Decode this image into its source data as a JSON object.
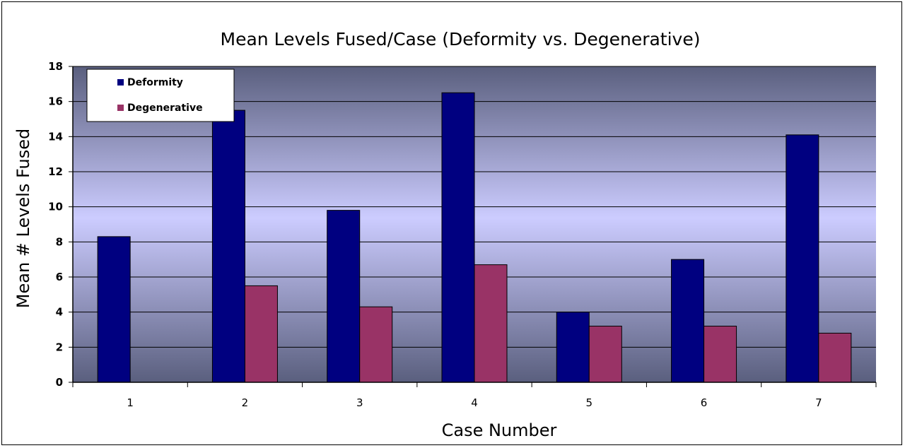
{
  "chart_data": {
    "type": "bar",
    "title": "Mean Levels Fused/Case (Deformity vs. Degenerative)",
    "xlabel": "Case Number",
    "ylabel": "Mean # Levels Fused",
    "categories": [
      "1",
      "2",
      "3",
      "4",
      "5",
      "6",
      "7"
    ],
    "ylim": [
      0,
      18
    ],
    "yticks": [
      0,
      2,
      4,
      6,
      8,
      10,
      12,
      14,
      16,
      18
    ],
    "grid": true,
    "legend_position": "top-left",
    "series": [
      {
        "name": "Deformity",
        "color": "#000080",
        "values": [
          8.3,
          15.5,
          9.8,
          16.5,
          4.0,
          7.0,
          14.1
        ]
      },
      {
        "name": "Degenerative",
        "color": "#993366",
        "values": [
          null,
          5.5,
          4.3,
          6.7,
          3.2,
          3.2,
          2.8
        ]
      }
    ]
  }
}
